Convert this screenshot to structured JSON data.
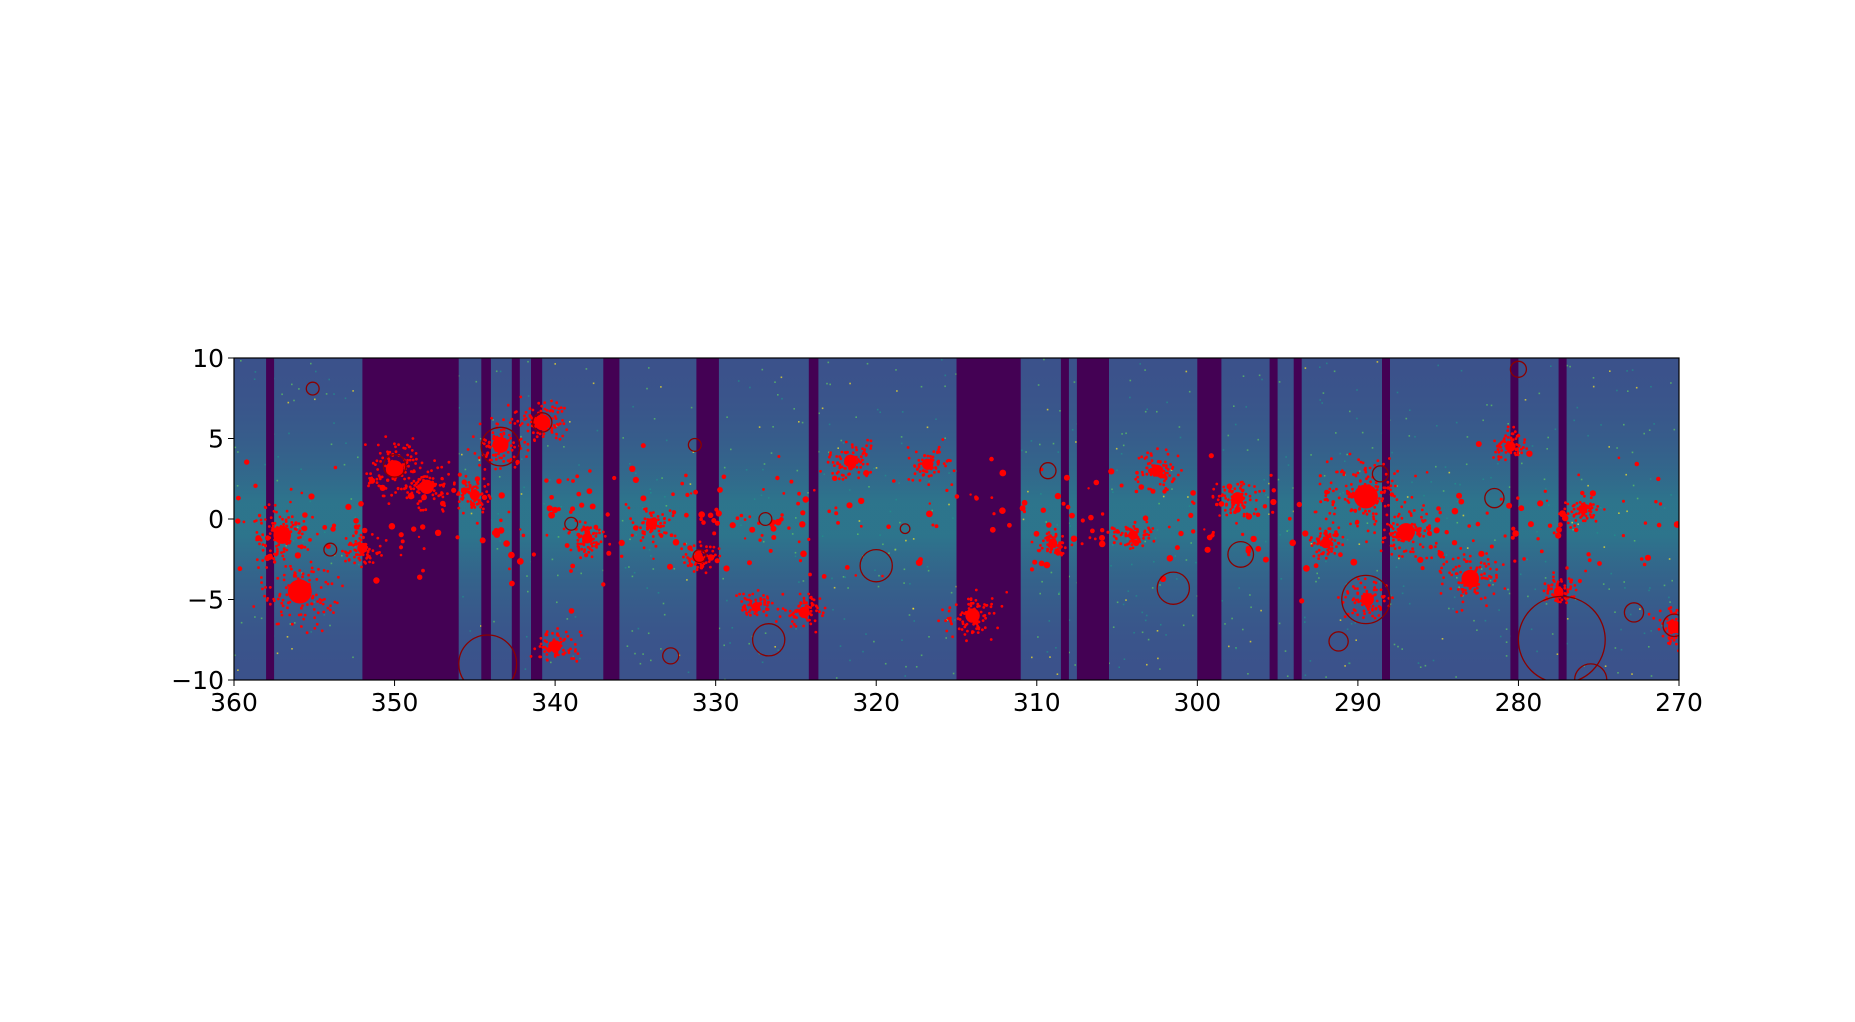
{
  "chart_data": {
    "type": "scatter",
    "title": "",
    "xlabel": "",
    "ylabel": "",
    "xlim": [
      360,
      270
    ],
    "ylim": [
      -10,
      10
    ],
    "x_ticks": [
      360,
      350,
      340,
      330,
      320,
      310,
      300,
      290,
      280,
      270
    ],
    "x_tick_labels": [
      "360",
      "350",
      "340",
      "330",
      "320",
      "310",
      "300",
      "290",
      "280",
      "270"
    ],
    "y_ticks": [
      10,
      5,
      0,
      -5,
      -10
    ],
    "y_tick_labels": [
      "10",
      "5",
      "0",
      "−5",
      "−10"
    ],
    "grid": false,
    "legend": "none",
    "background": {
      "kind": "image",
      "colormap": "viridis",
      "colors": {
        "empty": "#440154",
        "low": "#3b528b",
        "mid": "#21918c",
        "high": "#5ec962",
        "peak": "#fde725"
      },
      "no_coverage_gaps_l": [
        [
          357.5,
          358.0
        ],
        [
          346.0,
          352.0
        ],
        [
          344.0,
          344.6
        ],
        [
          342.2,
          342.7
        ],
        [
          340.8,
          341.5
        ],
        [
          336.0,
          337.0
        ],
        [
          329.8,
          331.2
        ],
        [
          323.6,
          324.2
        ],
        [
          311.0,
          315.0
        ],
        [
          308.0,
          308.5
        ],
        [
          305.5,
          307.5
        ],
        [
          298.5,
          300.0
        ],
        [
          295.0,
          295.5
        ],
        [
          293.5,
          294.0
        ],
        [
          288.0,
          288.5
        ],
        [
          280.0,
          280.5
        ],
        [
          277.0,
          277.5
        ]
      ]
    },
    "markers": {
      "color": "#ff0000",
      "edge_color": "#8b0000",
      "clusters": [
        {
          "l": 355.9,
          "b": -4.5,
          "size": 3.0
        },
        {
          "l": 350.0,
          "b": 3.1,
          "size": 2.2
        },
        {
          "l": 343.4,
          "b": 4.6,
          "size": 2.0
        },
        {
          "l": 340.8,
          "b": 6.0,
          "size": 2.0
        },
        {
          "l": 348.0,
          "b": 2.0,
          "size": 1.8
        },
        {
          "l": 357.0,
          "b": -1.0,
          "size": 2.2
        },
        {
          "l": 340.0,
          "b": -7.9,
          "size": 1.5
        },
        {
          "l": 321.6,
          "b": 3.6,
          "size": 1.6
        },
        {
          "l": 314.0,
          "b": -6.0,
          "size": 1.8
        },
        {
          "l": 289.5,
          "b": 1.4,
          "size": 3.0
        },
        {
          "l": 287.0,
          "b": -0.8,
          "size": 2.2
        },
        {
          "l": 283.0,
          "b": -3.7,
          "size": 2.2
        },
        {
          "l": 289.4,
          "b": -5.0,
          "size": 1.6
        },
        {
          "l": 297.5,
          "b": 1.3,
          "size": 1.5
        },
        {
          "l": 302.5,
          "b": 3.0,
          "size": 1.5
        },
        {
          "l": 316.8,
          "b": 3.4,
          "size": 1.4
        },
        {
          "l": 334.0,
          "b": -0.3,
          "size": 1.4
        },
        {
          "l": 324.5,
          "b": -5.8,
          "size": 1.4
        },
        {
          "l": 270.3,
          "b": -6.7,
          "size": 1.6
        },
        {
          "l": 280.5,
          "b": 4.5,
          "size": 1.3
        },
        {
          "l": 352.0,
          "b": -1.8,
          "size": 1.3
        },
        {
          "l": 345.0,
          "b": 1.5,
          "size": 1.3
        },
        {
          "l": 338.0,
          "b": -1.2,
          "size": 1.3
        },
        {
          "l": 331.0,
          "b": -2.5,
          "size": 1.2
        },
        {
          "l": 327.5,
          "b": -5.5,
          "size": 1.1
        },
        {
          "l": 309.0,
          "b": -1.5,
          "size": 1.1
        },
        {
          "l": 304.0,
          "b": -1.0,
          "size": 1.2
        },
        {
          "l": 292.0,
          "b": -1.5,
          "size": 1.3
        },
        {
          "l": 277.5,
          "b": -4.5,
          "size": 1.2
        },
        {
          "l": 276.0,
          "b": 0.6,
          "size": 1.1
        }
      ],
      "circles": [
        {
          "l": 355.1,
          "b": 8.1,
          "r": 0.4
        },
        {
          "l": 350.0,
          "b": 3.3,
          "r": 0.7
        },
        {
          "l": 343.4,
          "b": 4.5,
          "r": 1.2
        },
        {
          "l": 340.8,
          "b": 6.0,
          "r": 0.6
        },
        {
          "l": 344.2,
          "b": -9.0,
          "r": 1.8
        },
        {
          "l": 354.0,
          "b": -1.9,
          "r": 0.4
        },
        {
          "l": 339.0,
          "b": -0.3,
          "r": 0.4
        },
        {
          "l": 331.3,
          "b": 4.6,
          "r": 0.4
        },
        {
          "l": 331.0,
          "b": -2.3,
          "r": 0.4
        },
        {
          "l": 332.8,
          "b": -8.5,
          "r": 0.5
        },
        {
          "l": 326.9,
          "b": 0.0,
          "r": 0.4
        },
        {
          "l": 326.7,
          "b": -7.5,
          "r": 1.0
        },
        {
          "l": 320.0,
          "b": -2.9,
          "r": 1.0
        },
        {
          "l": 318.2,
          "b": -0.6,
          "r": 0.3
        },
        {
          "l": 309.3,
          "b": 3.0,
          "r": 0.5
        },
        {
          "l": 301.5,
          "b": -4.3,
          "r": 1.0
        },
        {
          "l": 297.3,
          "b": -2.2,
          "r": 0.8
        },
        {
          "l": 289.5,
          "b": -5.0,
          "r": 1.5
        },
        {
          "l": 291.2,
          "b": -7.6,
          "r": 0.6
        },
        {
          "l": 288.6,
          "b": 2.8,
          "r": 0.5
        },
        {
          "l": 280.0,
          "b": 9.3,
          "r": 0.5
        },
        {
          "l": 281.5,
          "b": 1.3,
          "r": 0.6
        },
        {
          "l": 277.3,
          "b": -7.5,
          "r": 2.7
        },
        {
          "l": 275.5,
          "b": -10.0,
          "r": 1.0
        },
        {
          "l": 272.8,
          "b": -5.8,
          "r": 0.6
        },
        {
          "l": 270.3,
          "b": -6.6,
          "r": 0.7
        }
      ]
    }
  }
}
